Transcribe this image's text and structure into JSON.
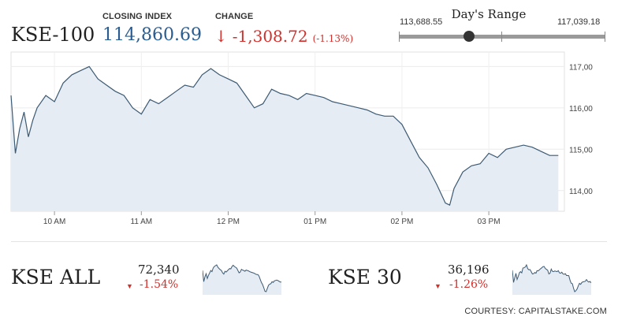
{
  "main_index": {
    "name": "KSE-100",
    "closing_label": "CLOSING INDEX",
    "closing_value": "114,860.69",
    "change_label": "CHANGE",
    "change_arrow": "↓",
    "change_value": "-1,308.72",
    "change_pct": "(-1.13%)"
  },
  "days_range": {
    "title": "Day's Range",
    "low": "113,688.55",
    "high": "117,039.18",
    "current_fraction": 0.34
  },
  "sub_indices": [
    {
      "name": "KSE ALL",
      "value": "72,340",
      "change": "-1.54%",
      "arrow": "▼"
    },
    {
      "name": "KSE 30",
      "value": "36,196",
      "change": "-1.26%",
      "arrow": "▼"
    }
  ],
  "courtesy": "COURTESY: CAPITALSTAKE.COM",
  "colors": {
    "line": "#3d5a73",
    "fill": "#e6ecf3",
    "down": "#d0312d",
    "index_blue": "#2a5c8f"
  },
  "chart_data": {
    "type": "area",
    "x_ticks": [
      "10 AM",
      "11 AM",
      "12 PM",
      "01 PM",
      "02 PM",
      "03 PM"
    ],
    "y_ticks": [
      "117,00",
      "116,00",
      "115,00",
      "114,00"
    ],
    "ylim": [
      113500,
      117350
    ],
    "x_hours": [
      9.5,
      9.55,
      9.6,
      9.65,
      9.7,
      9.75,
      9.8,
      9.9,
      10.0,
      10.1,
      10.2,
      10.3,
      10.4,
      10.5,
      10.6,
      10.7,
      10.8,
      10.9,
      11.0,
      11.1,
      11.2,
      11.3,
      11.4,
      11.5,
      11.6,
      11.7,
      11.8,
      11.9,
      12.0,
      12.1,
      12.2,
      12.3,
      12.4,
      12.5,
      12.6,
      12.7,
      12.8,
      12.9,
      13.0,
      13.1,
      13.2,
      13.3,
      13.4,
      13.5,
      13.6,
      13.7,
      13.8,
      13.9,
      14.0,
      14.1,
      14.2,
      14.3,
      14.4,
      14.5,
      14.55,
      14.6,
      14.7,
      14.8,
      14.9,
      15.0,
      15.1,
      15.2,
      15.3,
      15.4,
      15.5,
      15.6,
      15.7,
      15.8
    ],
    "values": [
      116300,
      114900,
      115500,
      115900,
      115300,
      115700,
      116000,
      116300,
      116150,
      116600,
      116800,
      116900,
      117000,
      116700,
      116550,
      116400,
      116300,
      116000,
      115850,
      116200,
      116100,
      116250,
      116400,
      116550,
      116500,
      116800,
      116950,
      116800,
      116700,
      116600,
      116300,
      116000,
      116100,
      116450,
      116350,
      116300,
      116200,
      116350,
      116300,
      116250,
      116150,
      116100,
      116050,
      116000,
      115950,
      115850,
      115800,
      115800,
      115600,
      115200,
      114800,
      114550,
      114150,
      113700,
      113650,
      114050,
      114450,
      114600,
      114650,
      114900,
      114800,
      115000,
      115050,
      115100,
      115050,
      114950,
      114850,
      114850
    ]
  }
}
